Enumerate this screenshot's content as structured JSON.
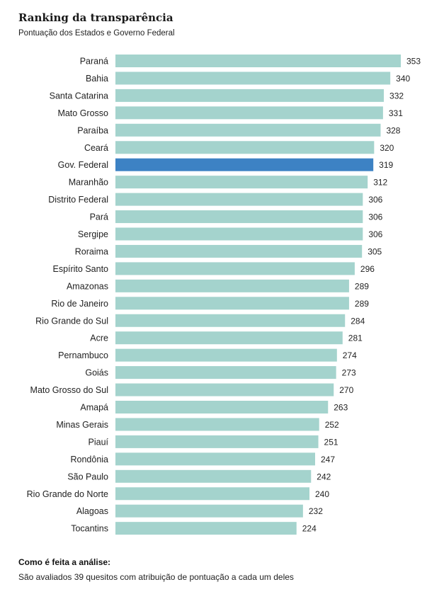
{
  "header": {
    "title": "Ranking da transparência",
    "subtitle": "Pontuação dos Estados e Governo Federal"
  },
  "colors": {
    "bar": "#a4d3cd",
    "highlight": "#3d82c4"
  },
  "chart_data": {
    "type": "bar",
    "orientation": "horizontal",
    "title": "Ranking da transparência",
    "subtitle": "Pontuação dos Estados e Governo Federal",
    "categories": [
      "Paraná",
      "Bahia",
      "Santa Catarina",
      "Mato Grosso",
      "Paraíba",
      "Ceará",
      "Gov. Federal",
      "Maranhão",
      "Distrito Federal",
      "Pará",
      "Sergipe",
      "Roraima",
      "Espírito Santo",
      "Amazonas",
      "Rio de Janeiro",
      "Rio Grande do Sul",
      "Acre",
      "Pernambuco",
      "Goiás",
      "Mato Grosso do Sul",
      "Amapá",
      "Minas Gerais",
      "Piauí",
      "Rondônia",
      "São Paulo",
      "Rio Grande do Norte",
      "Alagoas",
      "Tocantins"
    ],
    "values": [
      353,
      340,
      332,
      331,
      328,
      320,
      319,
      312,
      306,
      306,
      306,
      305,
      296,
      289,
      289,
      284,
      281,
      274,
      273,
      270,
      263,
      252,
      251,
      247,
      242,
      240,
      232,
      224
    ],
    "highlight": "Gov. Federal",
    "xlim": [
      0,
      353
    ],
    "grid": false,
    "legend": "none",
    "data_labels": true
  },
  "note": {
    "title": "Como é feita a análise:",
    "text": "São avaliados 39 quesitos com atribuição de pontuação a cada um deles"
  }
}
